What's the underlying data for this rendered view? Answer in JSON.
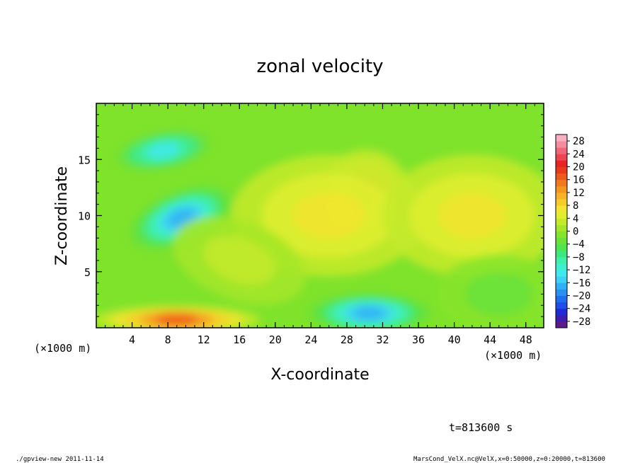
{
  "chart_data": {
    "type": "heatmap",
    "title": "zonal velocity",
    "xlabel": "X-coordinate",
    "ylabel": "Z-coordinate",
    "x_unit_label": "(×1000 m)",
    "y_unit_label": "(×1000 m)",
    "xlim": [
      0,
      50
    ],
    "ylim": [
      0,
      20
    ],
    "x_ticks": [
      "4",
      "8",
      "12",
      "16",
      "20",
      "24",
      "28",
      "32",
      "36",
      "40",
      "44",
      "48"
    ],
    "y_ticks": [
      "5",
      "10",
      "15"
    ],
    "colorbar": {
      "labels": [
        "28",
        "24",
        "20",
        "16",
        "12",
        "8",
        "4",
        "0",
        "−4",
        "−8",
        "−12",
        "−16",
        "−20",
        "−24",
        "−28"
      ],
      "min": -30,
      "max": 30,
      "step": 2
    },
    "features": [
      {
        "x": 9.5,
        "z": 9.8,
        "u": -18
      },
      {
        "x": 7.5,
        "z": 15.8,
        "u": -13
      },
      {
        "x": 30.5,
        "z": 1.3,
        "u": -18
      },
      {
        "x": 30.0,
        "z": 12.0,
        "u": 12
      },
      {
        "x": 9.0,
        "z": 0.7,
        "u": 16
      },
      {
        "x": 26.0,
        "z": 10.0,
        "u": 7
      },
      {
        "x": 42.0,
        "z": 10.0,
        "u": 6
      },
      {
        "x": 16.0,
        "z": 6.0,
        "u": 2
      },
      {
        "x": 45.0,
        "z": 3.0,
        "u": -3
      }
    ],
    "grid": false,
    "legend": "right"
  },
  "footer": {
    "time_label": "t=813600 s",
    "left_note": "./gpview-new  2011-11-14",
    "right_note": "MarsCond_VelX.nc@VelX,x=0:50000,z=0:20000,t=813600"
  }
}
